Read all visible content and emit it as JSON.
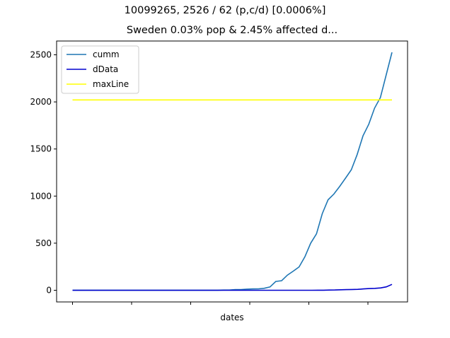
{
  "suptitle": "10099265, 2526 / 62 (p,c/d) [0.0006%]",
  "title": "Sweden 0.03% pop & 2.45% affected d...",
  "chart_data": {
    "type": "line",
    "xlabel": "dates",
    "ylabel": "",
    "ylim": [
      -80,
      2620
    ],
    "yticks": [
      0,
      500,
      1000,
      1500,
      2000,
      2500
    ],
    "x_tick_labels": [
      "",
      "",
      "",
      "",
      "",
      ""
    ],
    "grid": false,
    "legend_position": "top-left",
    "series": [
      {
        "name": "cumm",
        "color": "#1f77b4",
        "values": [
          1,
          1,
          1,
          1,
          1,
          1,
          1,
          1,
          1,
          1,
          1,
          1,
          1,
          1,
          1,
          1,
          1,
          1,
          1,
          1,
          1,
          1,
          1,
          1,
          1,
          1,
          2,
          2,
          7,
          7,
          12,
          14,
          15,
          21,
          35,
          94,
          101,
          161,
          203,
          248,
          355,
          500,
          599,
          814,
          961,
          1022,
          1103,
          1190,
          1279,
          1439,
          1639,
          1763,
          1934,
          2046,
          2286,
          2526
        ]
      },
      {
        "name": "dData",
        "color": "#0000cd",
        "values": [
          0,
          0,
          0,
          0,
          0,
          0,
          0,
          0,
          0,
          0,
          0,
          0,
          0,
          0,
          0,
          0,
          0,
          0,
          0,
          0,
          0,
          0,
          0,
          0,
          0,
          0,
          0,
          0,
          0,
          0,
          0,
          0,
          0,
          0,
          0,
          0,
          0,
          0,
          0,
          0,
          0,
          0,
          0,
          1,
          1,
          2,
          3,
          5,
          7,
          8,
          10,
          14,
          18,
          20,
          25,
          36,
          62
        ]
      },
      {
        "name": "maxLine",
        "color": "#ffff00",
        "values": [
          2021,
          2021
        ]
      }
    ]
  }
}
